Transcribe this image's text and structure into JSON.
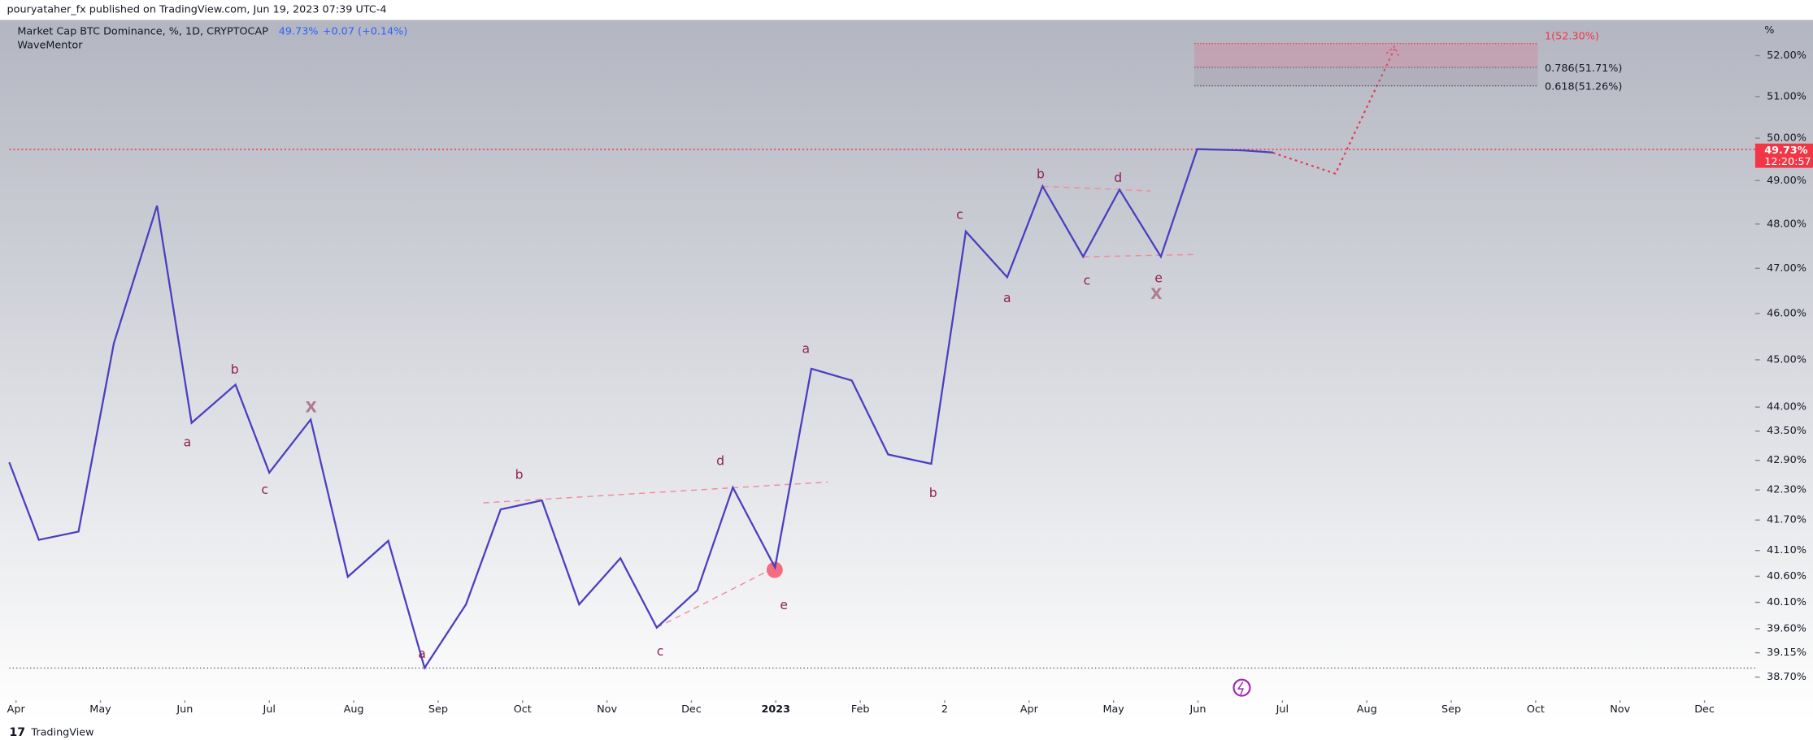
{
  "header": {
    "published": "pouryataher_fx published on TradingView.com, Jun 19, 2023 07:39 UTC-4"
  },
  "footer": {
    "brand": "TradingView"
  },
  "chart_data": {
    "type": "line",
    "title": "Market Cap BTC Dominance, %, 1D, CRYPTOCAP",
    "legend_value": "49.73%",
    "legend_change": "+0.07 (+0.14%)",
    "indicator": "WaveMentor",
    "y_unit": "%",
    "price_label": "49.73%",
    "countdown": "12:20:57",
    "log_scale": true,
    "color": "#4b3fc0",
    "x": [
      -0.08,
      0.27,
      0.74,
      1.16,
      1.67,
      2.08,
      2.6,
      3.0,
      3.49,
      3.93,
      4.41,
      4.84,
      5.33,
      5.74,
      6.23,
      6.67,
      7.16,
      7.59,
      8.07,
      8.49,
      8.99,
      9.42,
      9.9,
      10.33,
      10.84,
      11.25,
      11.74,
      12.16,
      12.64,
      13.07,
      13.56,
      13.99,
      14.53,
      14.89
    ],
    "values": [
      42.86,
      41.31,
      41.47,
      45.36,
      48.42,
      43.67,
      44.47,
      42.65,
      43.74,
      40.59,
      41.29,
      38.87,
      40.06,
      41.91,
      42.09,
      40.06,
      40.95,
      39.62,
      40.33,
      42.35,
      40.77,
      44.81,
      44.56,
      43.02,
      42.83,
      47.83,
      46.8,
      48.87,
      47.26,
      48.79,
      47.26,
      49.74,
      49.71,
      49.66
    ],
    "xlim": [
      -0.08,
      20.6
    ],
    "ylim": [
      38.4,
      52.86
    ],
    "xticks": [
      {
        "value": 0,
        "label": "Apr"
      },
      {
        "value": 1,
        "label": "May"
      },
      {
        "value": 2,
        "label": "Jun"
      },
      {
        "value": 3,
        "label": "Jul"
      },
      {
        "value": 4,
        "label": "Aug"
      },
      {
        "value": 5,
        "label": "Sep"
      },
      {
        "value": 6,
        "label": "Oct"
      },
      {
        "value": 7,
        "label": "Nov"
      },
      {
        "value": 8,
        "label": "Dec"
      },
      {
        "value": 9,
        "label": "2023"
      },
      {
        "value": 10,
        "label": "Feb"
      },
      {
        "value": 11,
        "label": "2"
      },
      {
        "value": 12,
        "label": "Apr"
      },
      {
        "value": 13,
        "label": "May"
      },
      {
        "value": 14,
        "label": "Jun"
      },
      {
        "value": 15,
        "label": "Jul"
      },
      {
        "value": 16,
        "label": "Aug"
      },
      {
        "value": 17,
        "label": "Sep"
      },
      {
        "value": 18,
        "label": "Oct"
      },
      {
        "value": 19,
        "label": "Nov"
      },
      {
        "value": 20,
        "label": "Dec"
      }
    ],
    "yticks": [
      {
        "value": 52,
        "label": "52.00%"
      },
      {
        "value": 51,
        "label": "51.00%"
      },
      {
        "value": 50,
        "label": "50.00%"
      },
      {
        "value": 49,
        "label": "49.00%"
      },
      {
        "value": 48,
        "label": "48.00%"
      },
      {
        "value": 47,
        "label": "47.00%"
      },
      {
        "value": 46,
        "label": "46.00%"
      },
      {
        "value": 45,
        "label": "45.00%"
      },
      {
        "value": 44,
        "label": "44.00%"
      },
      {
        "value": 43.5,
        "label": "43.50%"
      },
      {
        "value": 42.9,
        "label": "42.90%"
      },
      {
        "value": 42.3,
        "label": "42.30%"
      },
      {
        "value": 41.7,
        "label": "41.70%"
      },
      {
        "value": 41.1,
        "label": "41.10%"
      },
      {
        "value": 40.6,
        "label": "40.60%"
      },
      {
        "value": 40.1,
        "label": "40.10%"
      },
      {
        "value": 39.6,
        "label": "39.60%"
      },
      {
        "value": 39.15,
        "label": "39.15%"
      },
      {
        "value": 38.7,
        "label": "38.70%"
      }
    ],
    "fib_levels": [
      {
        "value": 52.3,
        "label": "1(52.30%)"
      },
      {
        "value": 51.71,
        "label": "0.786(51.71%)"
      },
      {
        "value": 51.26,
        "label": "0.618(51.26%)"
      }
    ],
    "annotations": [
      "a",
      "b",
      "c",
      "X",
      "a",
      "b",
      "c",
      "d",
      "e",
      "a",
      "b",
      "c",
      "a",
      "b",
      "c",
      "d",
      "e",
      "X"
    ]
  }
}
